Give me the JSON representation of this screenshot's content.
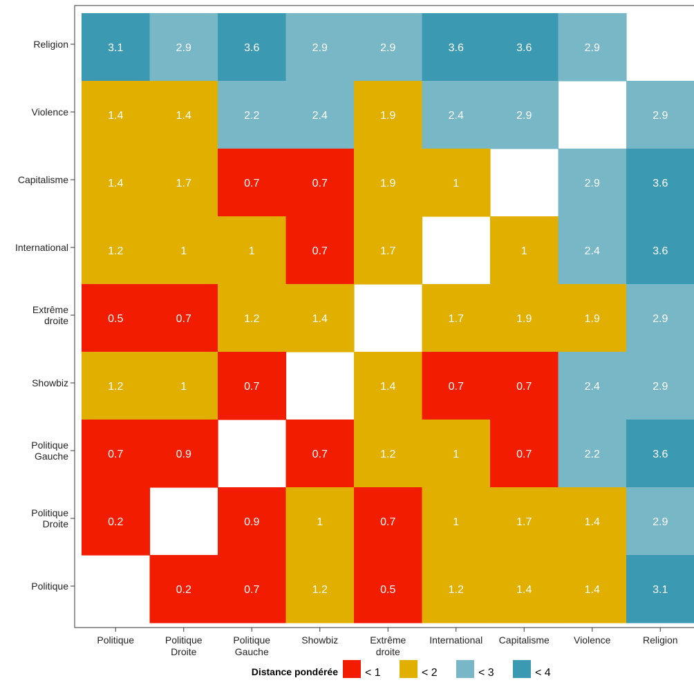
{
  "chart_data": {
    "type": "heatmap",
    "x_categories": [
      [
        "Politique"
      ],
      [
        "Politique",
        "Droite"
      ],
      [
        "Politique",
        "Gauche"
      ],
      [
        "Showbiz"
      ],
      [
        "Extrême",
        "droite"
      ],
      [
        "International"
      ],
      [
        "Capitalisme"
      ],
      [
        "Violence"
      ],
      [
        "Religion"
      ]
    ],
    "y_categories_bottom_to_top": [
      [
        "Politique"
      ],
      [
        "Politique",
        "Droite"
      ],
      [
        "Politique",
        "Gauche"
      ],
      [
        "Showbiz"
      ],
      [
        "Extrême",
        "droite"
      ],
      [
        "International"
      ],
      [
        "Capitalisme"
      ],
      [
        "Violence"
      ],
      [
        "Religion"
      ]
    ],
    "rows_top_to_bottom": [
      {
        "y": "Religion",
        "values": [
          3.1,
          2.9,
          3.6,
          2.9,
          2.9,
          3.6,
          3.6,
          2.9,
          null
        ]
      },
      {
        "y": "Violence",
        "values": [
          1.4,
          1.4,
          2.2,
          2.4,
          1.9,
          2.4,
          2.9,
          null,
          2.9
        ]
      },
      {
        "y": "Capitalisme",
        "values": [
          1.4,
          1.7,
          0.7,
          0.7,
          1.9,
          1,
          null,
          2.9,
          3.6
        ]
      },
      {
        "y": "International",
        "values": [
          1.2,
          1,
          1,
          0.7,
          1.7,
          null,
          1,
          2.4,
          3.6
        ]
      },
      {
        "y": "Extrême droite",
        "values": [
          0.5,
          0.7,
          1.2,
          1.4,
          null,
          1.7,
          1.9,
          1.9,
          2.9
        ]
      },
      {
        "y": "Showbiz",
        "values": [
          1.2,
          1,
          0.7,
          null,
          1.4,
          0.7,
          0.7,
          2.4,
          2.9
        ]
      },
      {
        "y": "Politique Gauche",
        "values": [
          0.7,
          0.9,
          null,
          0.7,
          1.2,
          1,
          0.7,
          2.2,
          3.6
        ]
      },
      {
        "y": "Politique Droite",
        "values": [
          0.2,
          null,
          0.9,
          1,
          0.7,
          1,
          1.7,
          1.4,
          2.9
        ]
      },
      {
        "y": "Politique",
        "values": [
          null,
          0.2,
          0.7,
          1.2,
          0.5,
          1.2,
          1.4,
          1.4,
          3.1
        ]
      }
    ],
    "legend": {
      "title": "Distance pondérée",
      "placement": "bottom",
      "items": [
        {
          "label": "< 1",
          "color": "#f21c00"
        },
        {
          "label": "< 2",
          "color": "#e0af00"
        },
        {
          "label": "< 3",
          "color": "#78b7c5"
        },
        {
          "label": "< 4",
          "color": "#3b9ab2"
        }
      ]
    },
    "grid": false
  }
}
